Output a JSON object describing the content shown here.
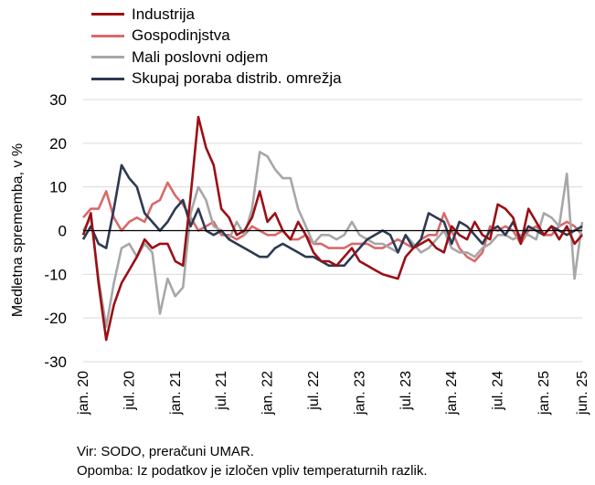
{
  "chart_data": {
    "type": "line",
    "ylabel": "Medletna sprememba, v %",
    "xlabel": "",
    "ylim": [
      -30,
      30
    ],
    "yticks": [
      30,
      20,
      10,
      0,
      -10,
      -20,
      -30
    ],
    "x_tick_labels": [
      "jan. 20",
      "jul. 20",
      "jan. 21",
      "jul. 21",
      "jan. 22",
      "jul. 22",
      "jan. 23",
      "jul. 23",
      "jan. 24",
      "jul. 24",
      "jan. 25",
      "jun. 25"
    ],
    "x_tick_month_index": [
      0,
      6,
      12,
      18,
      24,
      30,
      36,
      42,
      48,
      54,
      60,
      65
    ],
    "x": [
      "2020-01",
      "2020-02",
      "2020-03",
      "2020-04",
      "2020-05",
      "2020-06",
      "2020-07",
      "2020-08",
      "2020-09",
      "2020-10",
      "2020-11",
      "2020-12",
      "2021-01",
      "2021-02",
      "2021-03",
      "2021-04",
      "2021-05",
      "2021-06",
      "2021-07",
      "2021-08",
      "2021-09",
      "2021-10",
      "2021-11",
      "2021-12",
      "2022-01",
      "2022-02",
      "2022-03",
      "2022-04",
      "2022-05",
      "2022-06",
      "2022-07",
      "2022-08",
      "2022-09",
      "2022-10",
      "2022-11",
      "2022-12",
      "2023-01",
      "2023-02",
      "2023-03",
      "2023-04",
      "2023-05",
      "2023-06",
      "2023-07",
      "2023-08",
      "2023-09",
      "2023-10",
      "2023-11",
      "2023-12",
      "2024-01",
      "2024-02",
      "2024-03",
      "2024-04",
      "2024-05",
      "2024-06",
      "2024-07",
      "2024-08",
      "2024-09",
      "2024-10",
      "2024-11",
      "2024-12",
      "2025-01",
      "2025-02",
      "2025-03",
      "2025-04",
      "2025-05",
      "2025-06"
    ],
    "series": [
      {
        "name": "Industrija",
        "color": "#9b0f16",
        "values": [
          -1,
          4,
          -12,
          -25,
          -17,
          -12,
          -9,
          -6,
          -2,
          -4,
          -3,
          -3,
          -7,
          -8,
          8,
          26,
          19,
          15,
          5,
          3,
          -1,
          0,
          3,
          9,
          2,
          4,
          0,
          -2,
          2,
          -1,
          -5,
          -7,
          -7,
          -8,
          -6,
          -4,
          -7,
          -8,
          -9,
          -10,
          -10.5,
          -11,
          -6,
          -4,
          -3,
          -2,
          -4,
          -5,
          1,
          -1,
          -2,
          2,
          -1,
          -2,
          6,
          5,
          3,
          -3,
          5,
          2,
          -1,
          1,
          -2,
          1,
          -3,
          -1
        ]
      },
      {
        "name": "Gospodinjstva",
        "color": "#d9696a",
        "values": [
          3,
          5,
          5,
          9,
          3,
          0,
          2,
          3,
          2,
          6,
          7,
          11,
          8,
          6,
          3,
          0,
          1,
          2,
          -1,
          -1,
          -2,
          -1,
          1,
          0,
          -1,
          -1,
          0,
          -2,
          -2,
          -1,
          -3,
          -3,
          -4,
          -4,
          -4,
          -3,
          -3,
          -3,
          -4,
          -4,
          -3,
          -2,
          -3,
          -4,
          -2,
          -1,
          -1,
          4,
          0,
          -4,
          -6,
          -7,
          -5,
          1,
          0,
          1,
          0,
          -3,
          0,
          1,
          -1,
          -1,
          1,
          2,
          1,
          -1
        ]
      },
      {
        "name": "Mali poslovni odjem",
        "color": "#a7a7a7",
        "values": [
          0,
          3,
          -11,
          -22,
          -12,
          -4,
          -3,
          -6,
          -3,
          -5,
          -19,
          -11,
          -15,
          -13,
          4,
          10,
          7,
          1,
          0,
          -2,
          2,
          -1,
          5,
          18,
          17,
          14,
          12,
          12,
          5,
          1,
          -3,
          -1,
          -1,
          -2,
          -1,
          2,
          -1,
          -2,
          -3,
          -3,
          -4,
          -5,
          -1,
          -3,
          -5,
          -4,
          -2,
          0,
          -4,
          -5,
          -5,
          -6,
          -4,
          -3,
          -1,
          -1,
          -2,
          -1,
          -1,
          -2,
          4,
          3,
          1,
          13,
          -11,
          2
        ]
      },
      {
        "name": "Skupaj poraba distrib. omrežja",
        "color": "#2d3a52",
        "values": [
          -2,
          1,
          -3,
          -4,
          5,
          15,
          12,
          10,
          4,
          2,
          0,
          2,
          5,
          7,
          1,
          5,
          0,
          -1,
          0,
          -2,
          -3,
          -4,
          -5,
          -6,
          -6,
          -4,
          -3,
          -4,
          -5,
          -6,
          -6,
          -7,
          -8,
          -8,
          -8,
          -6,
          -4,
          -2,
          -1,
          0,
          -1,
          -5,
          -1,
          -4,
          -2,
          4,
          3,
          2,
          -3,
          2,
          1,
          -1,
          -3,
          0,
          1,
          -1,
          2,
          -2,
          1,
          0,
          -1,
          1,
          0,
          -1,
          0,
          1
        ]
      }
    ]
  },
  "source": "Vir: SODO, preračuni UMAR.",
  "note": "Opomba: Iz podatkov je izločen vpliv temperaturnih razlik."
}
